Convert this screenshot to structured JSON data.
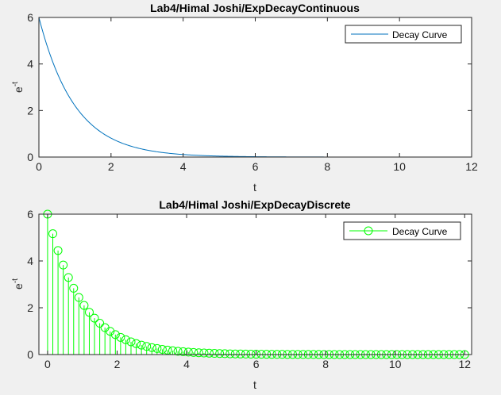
{
  "figure": {
    "background": "#f0f0f0"
  },
  "chart_data": [
    {
      "type": "line",
      "title": "Lab4/Himal Joshi/ExpDecayContinuous",
      "xlabel": "t",
      "ylabel_base": "e",
      "ylabel_sup": "-t",
      "xlim": [
        0,
        12
      ],
      "ylim": [
        0,
        6
      ],
      "xticks": [
        0,
        2,
        4,
        6,
        8,
        10,
        12
      ],
      "yticks": [
        0,
        2,
        4,
        6
      ],
      "grid": false,
      "legend": {
        "placement": "top-right",
        "entries": [
          "Decay Curve"
        ]
      },
      "series": [
        {
          "name": "Decay Curve",
          "color": "#0072bd",
          "function": "6*exp(-t)",
          "x_start": 0,
          "x_end": 12
        }
      ]
    },
    {
      "type": "stem",
      "title": "Lab4/Himal Joshi/ExpDecayDiscrete",
      "xlabel": "t",
      "ylabel_base": "e",
      "ylabel_sup": "-t",
      "xlim": [
        -0.25,
        12.2
      ],
      "ylim": [
        0,
        6
      ],
      "xticks": [
        0,
        2,
        4,
        6,
        8,
        10,
        12
      ],
      "yticks": [
        0,
        2,
        4,
        6
      ],
      "grid": false,
      "legend": {
        "placement": "top-right",
        "entries": [
          "Decay Curve"
        ]
      },
      "series": [
        {
          "name": "Decay Curve",
          "color": "#00ff00",
          "marker": "circle",
          "function": "6*exp(-t)",
          "x_start": 0,
          "x_end": 12,
          "x_step": 0.15
        }
      ]
    }
  ]
}
